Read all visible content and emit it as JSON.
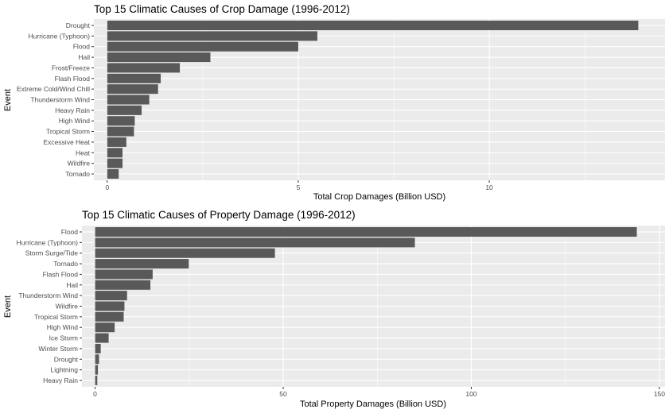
{
  "colors": {
    "panel_bg": "#ebebeb",
    "grid_major": "#ffffff",
    "bar_fill": "#595959",
    "tick_text": "#4d4d4d",
    "tick_mark": "#333333",
    "title_text": "#000000"
  },
  "chart_data": [
    {
      "type": "bar",
      "orientation": "horizontal",
      "title": "Top 15 Climatic Causes of Crop Damage (1996-2012)",
      "xlabel": "Total Crop Damages (Billion USD)",
      "ylabel": "Event",
      "categories": [
        "Drought",
        "Hurricane (Typhoon)",
        "Flood",
        "Hail",
        "Frost/Freeze",
        "Flash Flood",
        "Extreme Cold/Wind Chill",
        "Thunderstorm Wind",
        "Heavy Rain",
        "High Wind",
        "Tropical Storm",
        "Excessive Heat",
        "Heat",
        "Wildfire",
        "Tornado"
      ],
      "values": [
        13.9,
        5.5,
        5.0,
        2.7,
        1.9,
        1.4,
        1.33,
        1.1,
        0.9,
        0.72,
        0.7,
        0.5,
        0.4,
        0.4,
        0.3
      ],
      "xlim": [
        -0.35,
        14.6
      ],
      "xticks": [
        0,
        5,
        10
      ],
      "grid": true
    },
    {
      "type": "bar",
      "orientation": "horizontal",
      "title": "Top 15 Climatic Causes of Property Damage (1996-2012)",
      "xlabel": "Total Property Damages (Billion USD)",
      "ylabel": "Event",
      "categories": [
        "Flood",
        "Hurricane (Typhoon)",
        "Storm Surge/Tide",
        "Tornado",
        "Flash Flood",
        "Hail",
        "Thunderstorm Wind",
        "Wildfire",
        "Tropical Storm",
        "High Wind",
        "Ice Storm",
        "Winter Storm",
        "Drought",
        "Lightning",
        "Heavy Rain"
      ],
      "values": [
        144.0,
        85.0,
        47.8,
        24.9,
        15.3,
        14.7,
        8.5,
        7.8,
        7.6,
        5.2,
        3.6,
        1.5,
        1.05,
        0.75,
        0.58
      ],
      "xlim": [
        -3.5,
        151.5
      ],
      "xticks": [
        0,
        50,
        100,
        150
      ],
      "grid": true
    }
  ]
}
